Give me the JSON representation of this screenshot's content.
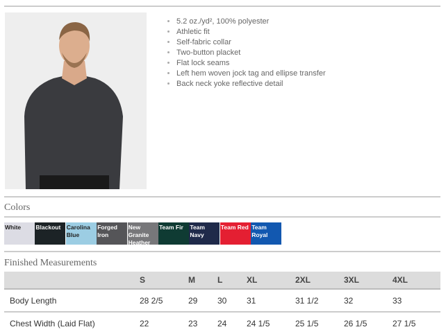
{
  "features": [
    "5.2 oz./yd², 100% polyester",
    "Athletic fit",
    "Self-fabric collar",
    "Two-button placket",
    "Flat lock seams",
    "Left hem woven jock tag and ellipse transfer",
    "Back neck yoke reflective detail"
  ],
  "colors_title": "Colors",
  "colors": [
    {
      "name": "White",
      "hex": "#dcdce4",
      "text": "#222"
    },
    {
      "name": "Blackout",
      "hex": "#1c2326",
      "text": "#fff"
    },
    {
      "name": "Carolina Blue",
      "hex": "#9ccde3",
      "text": "#222"
    },
    {
      "name": "Forged Iron",
      "hex": "#555558",
      "text": "#fff"
    },
    {
      "name": "New Granite Heather",
      "hex": "#77777a",
      "text": "#fff"
    },
    {
      "name": "Team Fir",
      "hex": "#0f3b33",
      "text": "#fff"
    },
    {
      "name": "Team Navy",
      "hex": "#1f2a4a",
      "text": "#fff"
    },
    {
      "name": "Team Red",
      "hex": "#e41f32",
      "text": "#fff"
    },
    {
      "name": "Team Royal",
      "hex": "#1258b0",
      "text": "#fff"
    }
  ],
  "measurements_title": "Finished Measurements",
  "sizes": [
    "S",
    "M",
    "L",
    "XL",
    "2XL",
    "3XL",
    "4XL"
  ],
  "rows": [
    {
      "label": "Body Length",
      "values": [
        "28 2/5",
        "29",
        "30",
        "31",
        "31 1/2",
        "32",
        "33"
      ]
    },
    {
      "label": "Chest Width (Laid Flat)",
      "values": [
        "22",
        "23",
        "24",
        "24 1/5",
        "25 1/5",
        "26 1/5",
        "27 1/5"
      ]
    }
  ]
}
